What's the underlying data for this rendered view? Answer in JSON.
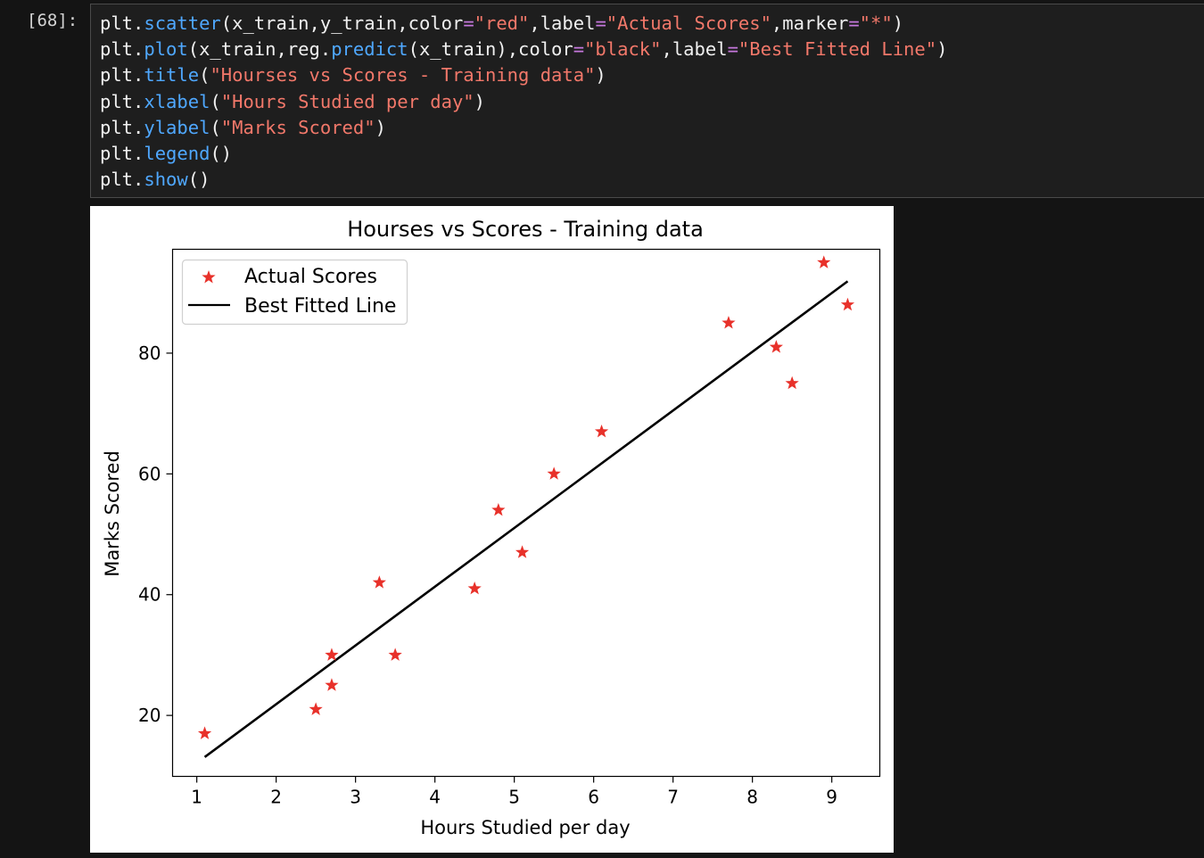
{
  "cell": {
    "prompt": "[68]:",
    "code_lines": [
      [
        [
          "txt",
          "plt."
        ],
        [
          "fn",
          "scatter"
        ],
        [
          "txt",
          "(x_train,y_train,color"
        ],
        [
          "op",
          "="
        ],
        [
          "str",
          "\"red\""
        ],
        [
          "txt",
          ",label"
        ],
        [
          "op",
          "="
        ],
        [
          "str",
          "\"Actual Scores\""
        ],
        [
          "txt",
          ",marker"
        ],
        [
          "op",
          "="
        ],
        [
          "str",
          "\"*\""
        ],
        [
          "txt",
          ")"
        ]
      ],
      [
        [
          "txt",
          "plt."
        ],
        [
          "fn",
          "plot"
        ],
        [
          "txt",
          "(x_train,reg."
        ],
        [
          "fn",
          "predict"
        ],
        [
          "txt",
          "(x_train),color"
        ],
        [
          "op",
          "="
        ],
        [
          "str",
          "\"black\""
        ],
        [
          "txt",
          ",label"
        ],
        [
          "op",
          "="
        ],
        [
          "str",
          "\"Best Fitted Line\""
        ],
        [
          "txt",
          ")"
        ]
      ],
      [
        [
          "txt",
          "plt."
        ],
        [
          "fn",
          "title"
        ],
        [
          "txt",
          "("
        ],
        [
          "str",
          "\"Hourses vs Scores - Training data\""
        ],
        [
          "txt",
          ")"
        ]
      ],
      [
        [
          "txt",
          "plt."
        ],
        [
          "fn",
          "xlabel"
        ],
        [
          "txt",
          "("
        ],
        [
          "str",
          "\"Hours Studied per day\""
        ],
        [
          "txt",
          ")"
        ]
      ],
      [
        [
          "txt",
          "plt."
        ],
        [
          "fn",
          "ylabel"
        ],
        [
          "txt",
          "("
        ],
        [
          "str",
          "\"Marks Scored\""
        ],
        [
          "txt",
          ")"
        ]
      ],
      [
        [
          "txt",
          "plt."
        ],
        [
          "fn",
          "legend"
        ],
        [
          "txt",
          "()"
        ]
      ],
      [
        [
          "txt",
          "plt."
        ],
        [
          "fn",
          "show"
        ],
        [
          "txt",
          "()"
        ]
      ]
    ]
  },
  "chart_data": {
    "type": "scatter",
    "title": "Hourses vs Scores - Training data",
    "xlabel": "Hours Studied per day",
    "ylabel": "Marks Scored",
    "xlim": [
      0.695,
      9.605
    ],
    "ylim": [
      9.9,
      97.2
    ],
    "xticks": [
      1,
      2,
      3,
      4,
      5,
      6,
      7,
      8,
      9
    ],
    "yticks": [
      20,
      40,
      60,
      80
    ],
    "legend_position": "upper-left",
    "grid": false,
    "series": [
      {
        "name": "Actual Scores",
        "kind": "scatter",
        "marker": "star",
        "color": "#e8312a",
        "x": [
          1.1,
          2.5,
          2.7,
          2.7,
          3.3,
          3.5,
          4.5,
          4.8,
          5.1,
          5.5,
          6.1,
          7.7,
          8.3,
          8.5,
          8.9,
          9.2
        ],
        "y": [
          17,
          21,
          25,
          30,
          42,
          30,
          41,
          54,
          47,
          60,
          67,
          85,
          81,
          75,
          95,
          88
        ]
      },
      {
        "name": "Best Fitted Line",
        "kind": "line",
        "color": "#000000",
        "x": [
          1.1,
          9.2
        ],
        "y": [
          13.1,
          91.9
        ]
      }
    ]
  }
}
